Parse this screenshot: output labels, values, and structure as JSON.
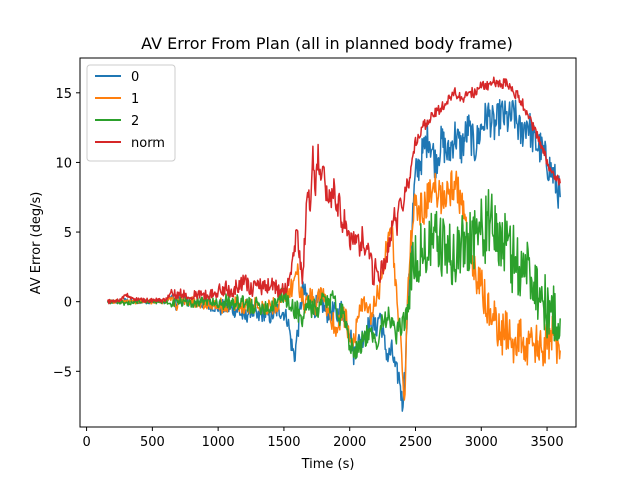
{
  "chart_data": {
    "type": "line",
    "title": "AV Error From Plan (all in planned body frame)",
    "xlabel": "Time (s)",
    "ylabel": "AV Error (deg/s)",
    "xlim": [
      -50,
      3720
    ],
    "ylim": [
      -9,
      17.5
    ],
    "xticks": [
      0,
      500,
      1000,
      1500,
      2000,
      2500,
      3000,
      3500
    ],
    "yticks": [
      -5,
      0,
      5,
      10,
      15
    ],
    "grid": false,
    "legend": "top-left",
    "series": [
      {
        "name": "0",
        "color": "#1f77b4",
        "x": [
          160,
          250,
          300,
          350,
          450,
          600,
          650,
          680,
          700,
          800,
          900,
          1000,
          1050,
          1100,
          1150,
          1200,
          1250,
          1300,
          1350,
          1400,
          1450,
          1500,
          1530,
          1560,
          1580,
          1600,
          1620,
          1640,
          1660,
          1700,
          1740,
          1780,
          1820,
          1860,
          1900,
          1940,
          1980,
          2000,
          2030,
          2060,
          2100,
          2140,
          2180,
          2200,
          2230,
          2260,
          2290,
          2320,
          2350,
          2380,
          2400,
          2420,
          2440,
          2460,
          2480,
          2500,
          2550,
          2600,
          2650,
          2700,
          2750,
          2800,
          2850,
          2900,
          2950,
          3000,
          3050,
          3100,
          3150,
          3200,
          3250,
          3300,
          3350,
          3400,
          3450,
          3500,
          3550,
          3600
        ],
        "values": [
          0,
          0,
          0.1,
          0,
          0,
          0,
          0.4,
          -0.3,
          0.1,
          0,
          -0.2,
          -0.5,
          -0.4,
          -0.5,
          -0.6,
          -1.2,
          -0.5,
          -1.2,
          -0.8,
          -1.1,
          -0.6,
          -0.8,
          -1.3,
          -3.2,
          -4.0,
          -2.5,
          -1.0,
          0.8,
          0.5,
          0.0,
          -0.4,
          0.2,
          -0.8,
          -0.6,
          -1.0,
          -0.5,
          -1.2,
          -2.0,
          -3.8,
          -3.0,
          -2.5,
          -1.8,
          -1.6,
          -2.0,
          -0.8,
          -2.8,
          -4.0,
          -3.5,
          -5.0,
          -5.5,
          -7.5,
          -5.0,
          -0.5,
          3.0,
          6.5,
          9.0,
          10.5,
          12.0,
          10.0,
          11.5,
          10.5,
          12.0,
          11.0,
          12.5,
          11.0,
          12.5,
          13.5,
          12.5,
          13.5,
          13.0,
          13.5,
          12.0,
          13.0,
          11.5,
          11.0,
          10.0,
          9.0,
          7.5
        ]
      },
      {
        "name": "1",
        "color": "#ff7f0e",
        "x": [
          160,
          250,
          300,
          350,
          450,
          600,
          650,
          680,
          700,
          800,
          900,
          1000,
          1100,
          1200,
          1300,
          1400,
          1450,
          1500,
          1540,
          1570,
          1600,
          1620,
          1660,
          1700,
          1740,
          1780,
          1820,
          1860,
          1900,
          1940,
          1980,
          2000,
          2040,
          2080,
          2120,
          2160,
          2200,
          2240,
          2280,
          2320,
          2340,
          2360,
          2380,
          2400,
          2420,
          2440,
          2460,
          2480,
          2500,
          2550,
          2600,
          2650,
          2700,
          2750,
          2800,
          2850,
          2900,
          2950,
          3000,
          3050,
          3100,
          3150,
          3200,
          3250,
          3300,
          3350,
          3400,
          3450,
          3500,
          3550,
          3600
        ],
        "values": [
          0,
          0,
          0.1,
          0,
          0,
          0,
          0.2,
          -0.4,
          0.1,
          0,
          -0.2,
          -0.3,
          -0.2,
          -0.3,
          -0.2,
          -0.4,
          -0.2,
          0.2,
          0.5,
          1.5,
          2.5,
          0.5,
          -0.2,
          0.5,
          -0.5,
          0.5,
          -0.2,
          -1.2,
          -2.0,
          -0.8,
          -1.5,
          -3.5,
          -2.5,
          -0.2,
          -0.5,
          -1.0,
          0.0,
          1.5,
          4.0,
          5.5,
          2.5,
          0.0,
          -1.5,
          -5.5,
          -6.8,
          0.0,
          4.5,
          6.0,
          7.0,
          6.5,
          7.5,
          8.0,
          7.5,
          8.0,
          8.5,
          7.0,
          4.0,
          2.0,
          1.0,
          -0.5,
          -1.5,
          -2.5,
          -2.0,
          -3.0,
          -2.5,
          -3.5,
          -3.0,
          -3.5,
          -3.0,
          -2.5,
          -3.5
        ]
      },
      {
        "name": "2",
        "color": "#2ca02c",
        "x": [
          160,
          250,
          300,
          350,
          450,
          600,
          650,
          680,
          700,
          800,
          900,
          1000,
          1100,
          1200,
          1300,
          1400,
          1450,
          1500,
          1550,
          1600,
          1640,
          1680,
          1720,
          1760,
          1800,
          1840,
          1880,
          1920,
          1960,
          2000,
          2040,
          2080,
          2120,
          2160,
          2200,
          2240,
          2280,
          2320,
          2350,
          2380,
          2400,
          2420,
          2440,
          2460,
          2480,
          2500,
          2550,
          2600,
          2650,
          2700,
          2750,
          2800,
          2850,
          2900,
          2950,
          3000,
          3050,
          3100,
          3150,
          3200,
          3250,
          3300,
          3350,
          3400,
          3450,
          3500,
          3550,
          3600
        ],
        "values": [
          0,
          0,
          -0.2,
          0,
          0,
          0,
          -0.3,
          0.1,
          0,
          -0.1,
          0.1,
          -0.1,
          0,
          -0.2,
          -0.3,
          -0.4,
          0.2,
          0.5,
          -0.5,
          -0.5,
          -1.5,
          0,
          -0.5,
          -1.0,
          0.5,
          -0.5,
          0.8,
          -1.0,
          -0.8,
          -3.0,
          -3.5,
          -3.0,
          -2.5,
          -2.5,
          -3.0,
          -1.5,
          -1.0,
          -1.5,
          -2.5,
          -2.0,
          -1.5,
          -1.2,
          -0.5,
          1.0,
          2.5,
          3.0,
          3.5,
          4.0,
          4.5,
          4.0,
          3.5,
          3.0,
          4.0,
          4.5,
          5.0,
          5.0,
          5.5,
          5.0,
          4.5,
          3.5,
          3.0,
          2.5,
          2.5,
          1.5,
          0.5,
          -0.5,
          -1.0,
          -1.2
        ]
      },
      {
        "name": "norm",
        "color": "#d62728",
        "x": [
          160,
          250,
          300,
          350,
          450,
          600,
          650,
          680,
          700,
          800,
          900,
          1000,
          1050,
          1100,
          1150,
          1200,
          1250,
          1300,
          1350,
          1400,
          1450,
          1500,
          1540,
          1570,
          1600,
          1620,
          1640,
          1660,
          1680,
          1700,
          1720,
          1740,
          1760,
          1780,
          1800,
          1820,
          1840,
          1860,
          1880,
          1900,
          1920,
          1940,
          1960,
          1980,
          2000,
          2020,
          2040,
          2060,
          2080,
          2100,
          2120,
          2140,
          2160,
          2180,
          2200,
          2220,
          2240,
          2260,
          2280,
          2300,
          2320,
          2340,
          2360,
          2380,
          2400,
          2420,
          2440,
          2460,
          2480,
          2500,
          2550,
          2600,
          2650,
          2700,
          2750,
          2800,
          2850,
          2900,
          2950,
          3000,
          3050,
          3100,
          3150,
          3200,
          3250,
          3300,
          3350,
          3400,
          3450,
          3500,
          3550,
          3600
        ],
        "values": [
          0,
          0.1,
          0.5,
          0.2,
          0.1,
          0.1,
          0.8,
          0.4,
          0.6,
          0.5,
          0.5,
          0.6,
          1.0,
          0.8,
          1.2,
          1.5,
          0.8,
          1.3,
          0.9,
          1.2,
          0.9,
          1.0,
          1.5,
          3.0,
          5.0,
          3.5,
          2.0,
          4.5,
          8.5,
          6.5,
          10.5,
          8.0,
          10.5,
          9.0,
          9.5,
          8.0,
          7.5,
          7.0,
          8.5,
          6.0,
          7.5,
          5.5,
          6.0,
          5.5,
          4.0,
          4.8,
          4.5,
          5.5,
          3.5,
          5.0,
          3.0,
          3.5,
          3.0,
          1.5,
          3.0,
          1.0,
          3.0,
          2.5,
          3.5,
          4.0,
          5.5,
          6.0,
          5.5,
          7.5,
          7.0,
          8.0,
          8.5,
          9.0,
          10.5,
          11.5,
          12.5,
          13.0,
          13.5,
          14.0,
          14.5,
          15.0,
          14.5,
          15.0,
          15.0,
          15.5,
          15.5,
          15.8,
          15.5,
          15.8,
          15.0,
          14.5,
          13.5,
          12.5,
          11.5,
          10.0,
          9.0,
          8.5
        ]
      }
    ]
  }
}
